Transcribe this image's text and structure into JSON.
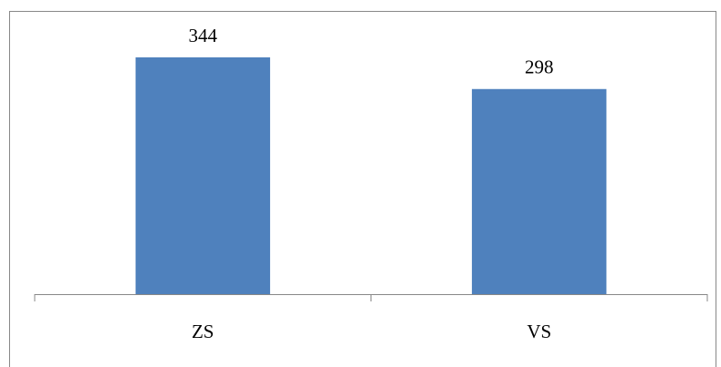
{
  "chart_data": {
    "type": "bar",
    "categories": [
      "ZS",
      "VS"
    ],
    "values": [
      344,
      298
    ],
    "color": "#4f81bd"
  }
}
